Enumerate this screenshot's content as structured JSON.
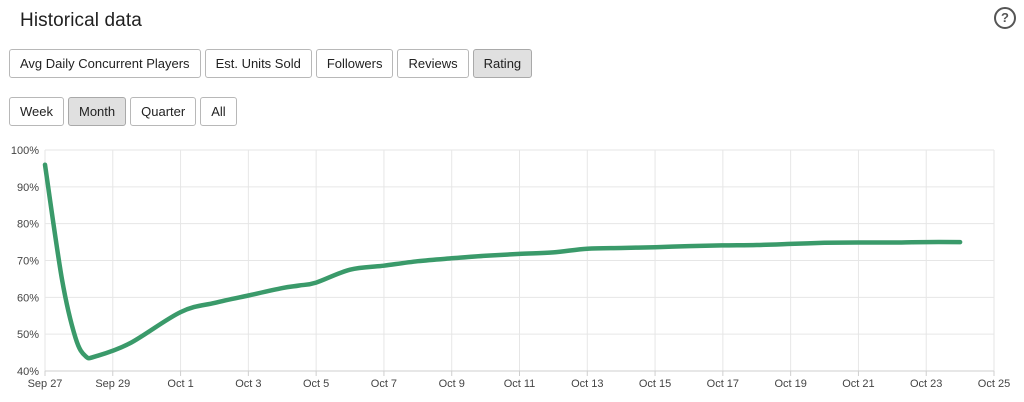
{
  "header": {
    "title": "Historical data",
    "help_glyph": "?"
  },
  "metric_tabs": [
    {
      "label": "Avg Daily Concurrent Players",
      "active": false
    },
    {
      "label": "Est. Units Sold",
      "active": false
    },
    {
      "label": "Followers",
      "active": false
    },
    {
      "label": "Reviews",
      "active": false
    },
    {
      "label": "Rating",
      "active": true
    }
  ],
  "range_tabs": [
    {
      "label": "Week",
      "active": false
    },
    {
      "label": "Month",
      "active": true
    },
    {
      "label": "Quarter",
      "active": false
    },
    {
      "label": "All",
      "active": false
    }
  ],
  "icons": {
    "help": "help-circle-icon"
  },
  "colors": {
    "line": "#3a9a6a",
    "grid": "#e6e6e6",
    "active_button": "#e0e0e0"
  },
  "chart_data": {
    "type": "line",
    "x_tick_labels": [
      "Sep 27",
      "Sep 29",
      "Oct 1",
      "Oct 3",
      "Oct 5",
      "Oct 7",
      "Oct 9",
      "Oct 11",
      "Oct 13",
      "Oct 15",
      "Oct 17",
      "Oct 19",
      "Oct 21",
      "Oct 23",
      "Oct 25"
    ],
    "y_tick_labels": [
      "40%",
      "50%",
      "60%",
      "70%",
      "80%",
      "90%",
      "100%"
    ],
    "ylim": [
      40,
      100
    ],
    "xlim_days": [
      0,
      28
    ],
    "grid": true,
    "legend": "none",
    "series": [
      {
        "x_days": [
          0,
          0.5,
          0.9,
          1.2,
          1.5,
          2.5,
          4,
          5,
          6,
          7,
          7.5,
          8,
          9,
          10,
          11,
          12,
          13,
          14,
          15,
          16,
          17,
          18,
          19,
          20,
          21,
          22,
          23,
          24,
          25,
          26,
          27
        ],
        "values": [
          96,
          65,
          49,
          44,
          44,
          47.5,
          56,
          58.5,
          60.5,
          62.5,
          63.2,
          64,
          67.5,
          68.6,
          69.8,
          70.6,
          71.3,
          71.8,
          72.2,
          73.2,
          73.4,
          73.6,
          73.9,
          74.1,
          74.2,
          74.5,
          74.8,
          74.9,
          74.9,
          75,
          75
        ]
      }
    ]
  }
}
